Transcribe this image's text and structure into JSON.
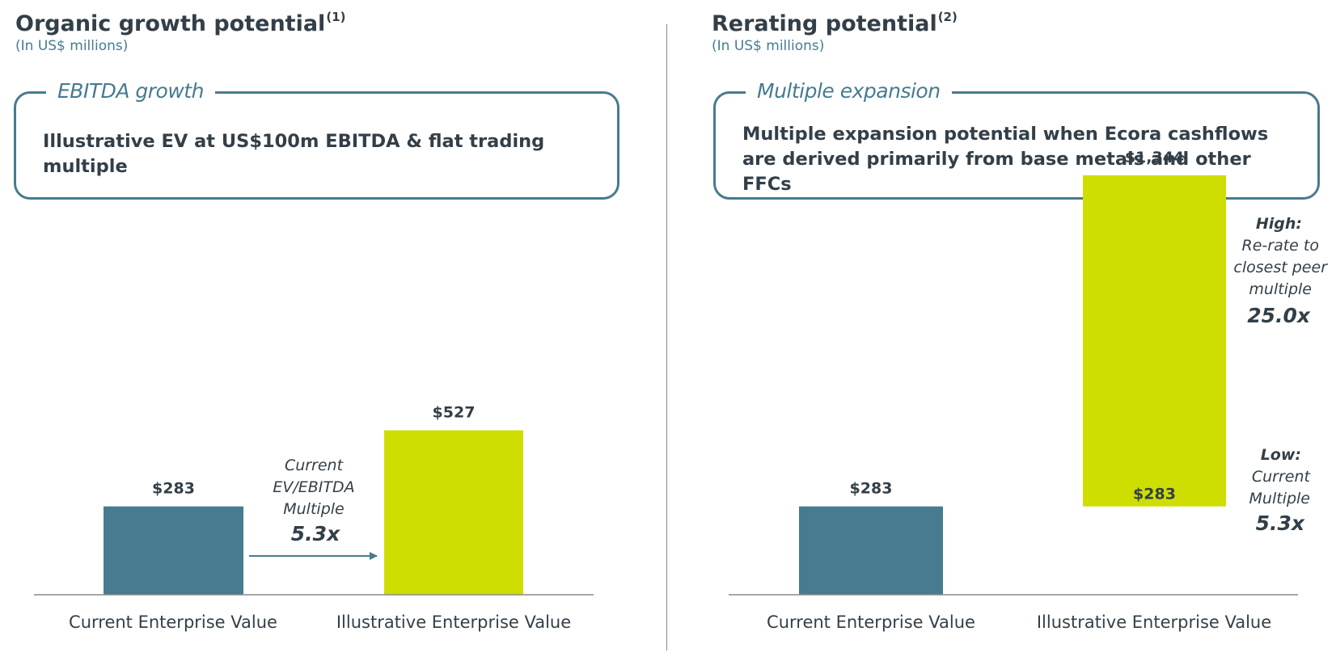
{
  "colors": {
    "teal": "#477b8f",
    "lime": "#cdde00",
    "text": "#333f48",
    "axis": "#8a8a8a"
  },
  "left": {
    "title": "Organic growth potential",
    "title_note": "(1)",
    "subtitle": "(In US$ millions)",
    "box_label": "EBITDA growth",
    "box_text": "Illustrative EV at US$100m EBITDA & flat trading multiple",
    "annotation": {
      "line1": "Current",
      "line2": "EV/EBITDA",
      "line3": "Multiple",
      "multiple": "5.3x"
    }
  },
  "right": {
    "title": "Rerating potential",
    "title_note": "(2)",
    "subtitle": "(In US$ millions)",
    "box_label": "Multiple expansion",
    "box_text": "Multiple expansion potential when Ecora cashflows are derived primarily from base metals and other FFCs",
    "high": {
      "label": "High:",
      "line1": "Re-rate to",
      "line2": "closest peer",
      "line3": "multiple",
      "multiple": "25.0x"
    },
    "low": {
      "label": "Low:",
      "line1": "Current",
      "line2": "Multiple",
      "multiple": "5.3x"
    }
  },
  "chart_data": [
    {
      "type": "bar",
      "title": "Organic growth potential",
      "ylabel": "",
      "categories": [
        "Current Enterprise Value",
        "Illustrative Enterprise Value"
      ],
      "values": [
        283,
        527
      ],
      "value_labels": [
        "$283",
        "$527"
      ],
      "colors": [
        "#477b8f",
        "#cdde00"
      ],
      "ylim": [
        0,
        1400
      ]
    },
    {
      "type": "bar",
      "title": "Rerating potential",
      "ylabel": "",
      "categories": [
        "Current Enterprise Value",
        "Illustrative Enterprise Value"
      ],
      "values": [
        283,
        1344
      ],
      "range_low": 283,
      "value_labels": [
        "$283",
        "$1,344"
      ],
      "low_label": "$283",
      "colors": [
        "#477b8f",
        "#cdde00"
      ],
      "ylim": [
        0,
        1400
      ]
    }
  ]
}
